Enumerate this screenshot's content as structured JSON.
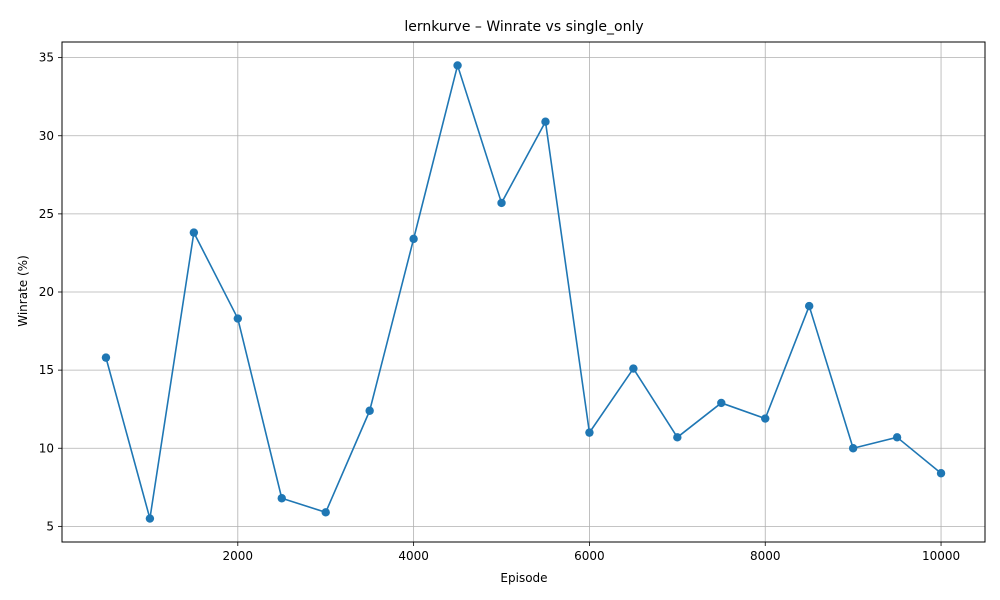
{
  "chart_data": {
    "type": "line",
    "title": "lernkurve – Winrate vs single_only",
    "xlabel": "Episode",
    "ylabel": "Winrate (%)",
    "xlim": [
      0,
      10500
    ],
    "ylim": [
      4.0,
      36.0
    ],
    "xticks": [
      2000,
      4000,
      6000,
      8000,
      10000
    ],
    "xtick_labels": [
      "2000",
      "4000",
      "6000",
      "8000",
      "10000"
    ],
    "yticks": [
      5,
      10,
      15,
      20,
      25,
      30,
      35
    ],
    "ytick_labels": [
      "5",
      "10",
      "15",
      "20",
      "25",
      "30",
      "35"
    ],
    "grid": true,
    "line_color": "#1f77b4",
    "series": [
      {
        "x": [
          500,
          1000,
          1500,
          2000,
          2500,
          3000,
          3500,
          4000,
          4500,
          5000,
          5500,
          6000,
          6500,
          7000,
          7500,
          8000,
          8500,
          9000,
          9500,
          10000
        ],
        "values": [
          15.8,
          5.5,
          23.8,
          18.3,
          6.8,
          5.9,
          12.4,
          23.4,
          34.5,
          25.7,
          30.9,
          11.0,
          15.1,
          10.7,
          12.9,
          11.9,
          19.1,
          10.0,
          10.7,
          8.4
        ]
      }
    ]
  }
}
